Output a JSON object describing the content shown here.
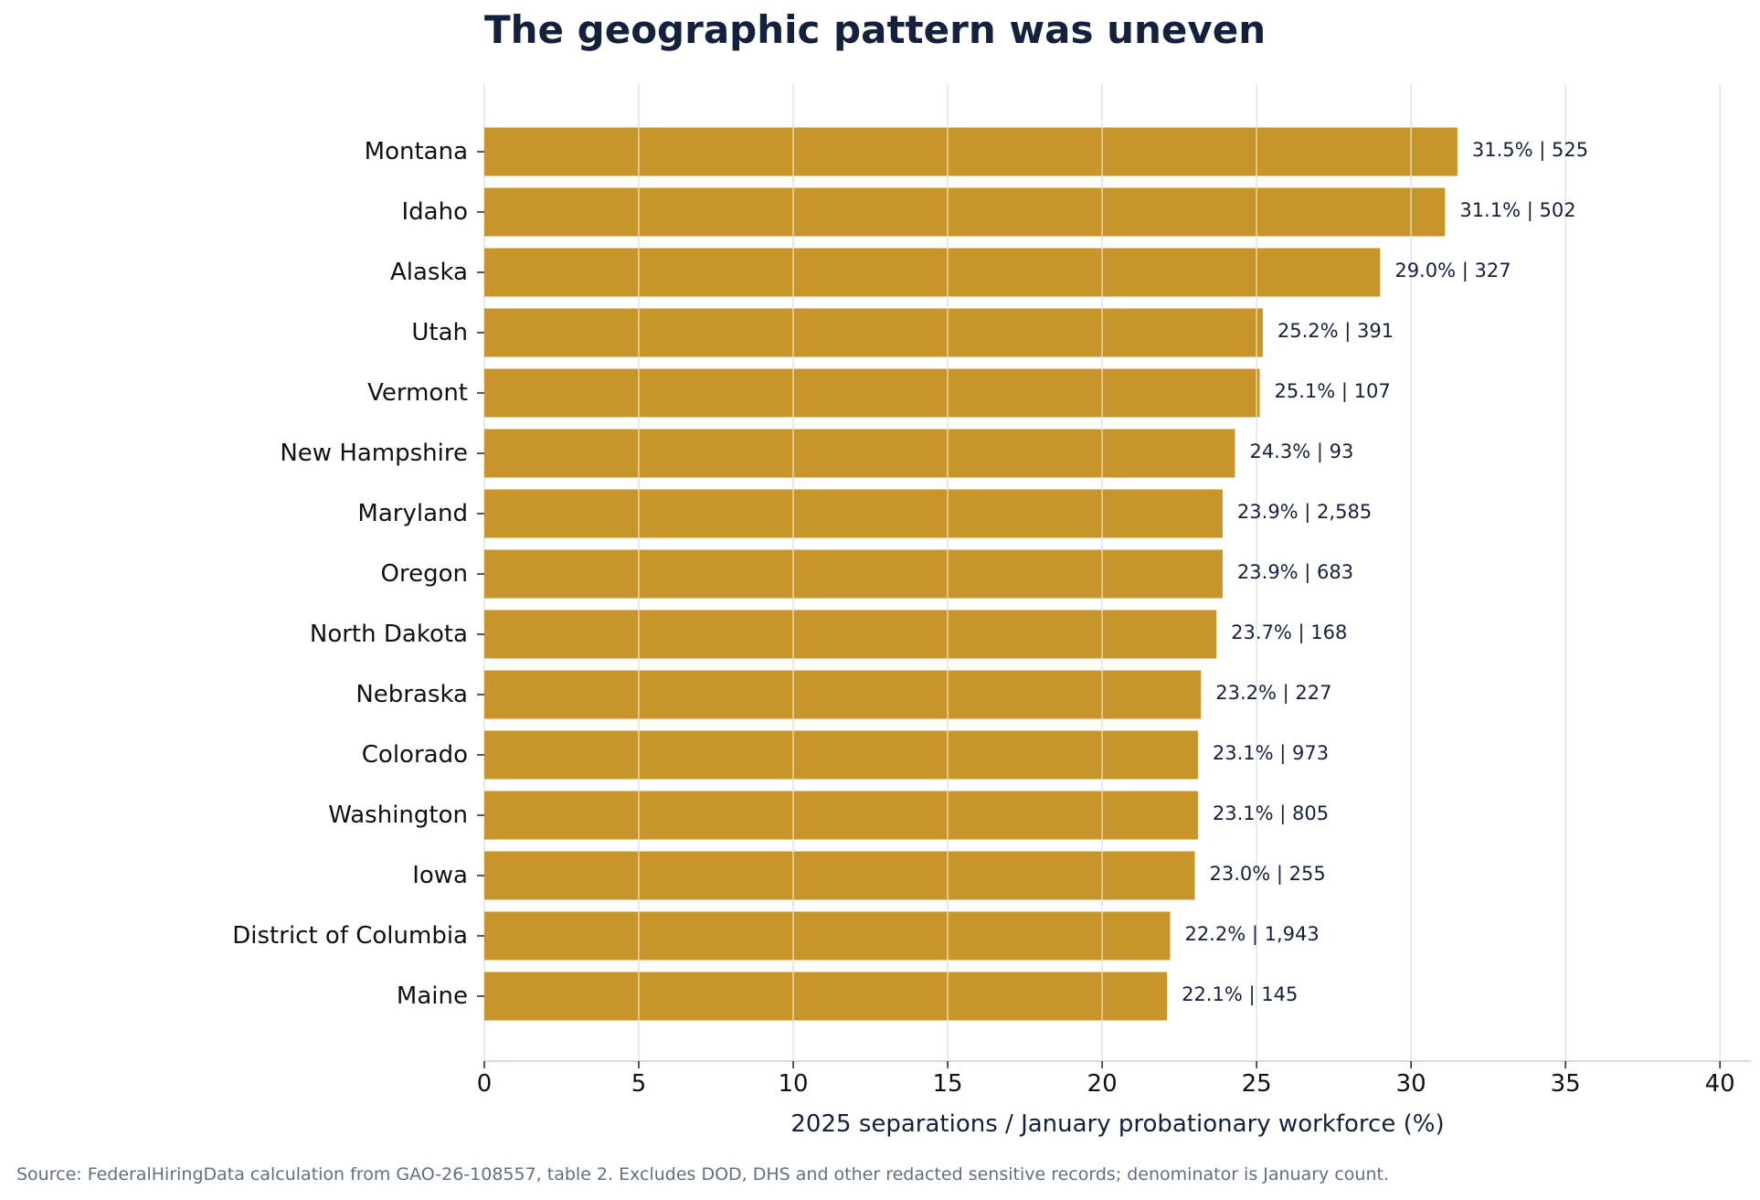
{
  "chart_data": {
    "type": "bar",
    "orientation": "horizontal",
    "title": "The geographic pattern was uneven",
    "xlabel": "2025 separations / January probationary workforce (%)",
    "ylabel": "",
    "xlim": [
      0,
      41
    ],
    "xticks": [
      0,
      5,
      10,
      15,
      20,
      25,
      30,
      35,
      40
    ],
    "grid": "vertical",
    "bar_color": "#c8952b",
    "categories": [
      "Montana",
      "Idaho",
      "Alaska",
      "Utah",
      "Vermont",
      "New Hampshire",
      "Maryland",
      "Oregon",
      "North Dakota",
      "Nebraska",
      "Colorado",
      "Washington",
      "Iowa",
      "District of Columbia",
      "Maine"
    ],
    "values": [
      31.5,
      31.1,
      29.0,
      25.2,
      25.1,
      24.3,
      23.9,
      23.9,
      23.7,
      23.2,
      23.1,
      23.1,
      23.0,
      22.2,
      22.1
    ],
    "data_labels": [
      "31.5% | 525",
      "31.1% | 502",
      "29.0% | 327",
      "25.2% | 391",
      "25.1% | 107",
      "24.3% | 93",
      "23.9% | 2,585",
      "23.9% | 683",
      "23.7% | 168",
      "23.2% | 227",
      "23.1% | 973",
      "23.1% | 805",
      "23.0% | 255",
      "22.2% | 1,943",
      "22.1% | 145"
    ]
  },
  "source_note": "Source: FederalHiringData calculation from GAO-26-108557, table 2. Excludes DOD, DHS and other redacted sensitive records; denominator is January count."
}
